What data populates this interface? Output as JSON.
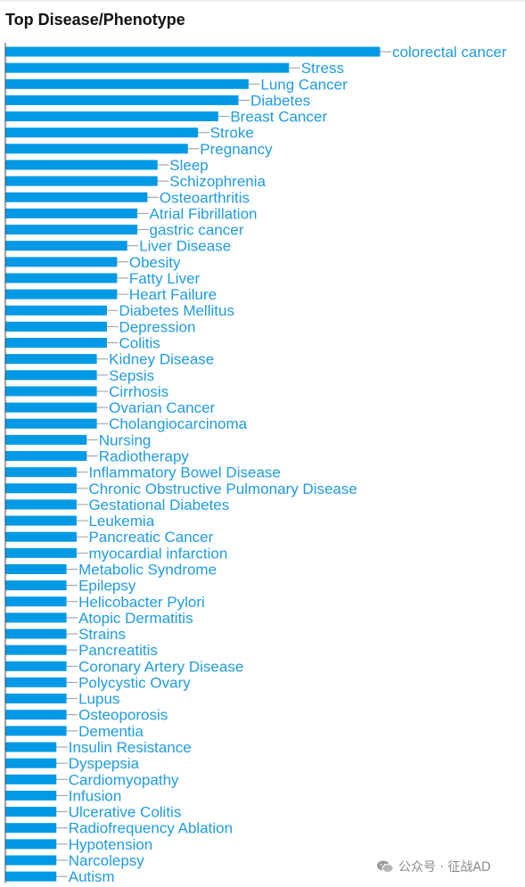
{
  "chart_data": {
    "type": "bar",
    "orientation": "horizontal",
    "title": "Top Disease/Phenotype",
    "xlabel": "",
    "ylabel": "",
    "categories": [
      "colorectal cancer",
      "Stress",
      "Lung Cancer",
      "Diabetes",
      "Breast Cancer",
      "Stroke",
      "Pregnancy",
      "Sleep",
      "Schizophrenia",
      "Osteoarthritis",
      "Atrial Fibrillation",
      "gastric cancer",
      "Liver Disease",
      "Obesity",
      "Fatty Liver",
      "Heart Failure",
      "Diabetes Mellitus",
      "Depression",
      "Colitis",
      "Kidney Disease",
      "Sepsis",
      "Cirrhosis",
      "Ovarian Cancer",
      "Cholangiocarcinoma",
      "Nursing",
      "Radiotherapy",
      "Inflammatory Bowel Disease",
      "Chronic Obstructive Pulmonary Disease",
      "Gestational Diabetes",
      "Leukemia",
      "Pancreatic Cancer",
      "myocardial infarction",
      "Metabolic Syndrome",
      "Epilepsy",
      "Helicobacter Pylori",
      "Atopic Dermatitis",
      "Strains",
      "Pancreatitis",
      "Coronary Artery Disease",
      "Polycystic Ovary",
      "Lupus",
      "Osteoporosis",
      "Dementia",
      "Insulin Resistance",
      "Dyspepsia",
      "Cardiomyopathy",
      "Infusion",
      "Ulcerative Colitis",
      "Radiofrequency Ablation",
      "Hypotension",
      "Narcolepsy",
      "Autism"
    ],
    "values": [
      37,
      28,
      24,
      23,
      21,
      19,
      18,
      15,
      15,
      14,
      13,
      13,
      12,
      11,
      11,
      11,
      10,
      10,
      10,
      9,
      9,
      9,
      9,
      9,
      8,
      8,
      7,
      7,
      7,
      7,
      7,
      7,
      6,
      6,
      6,
      6,
      6,
      6,
      6,
      6,
      6,
      6,
      6,
      5,
      5,
      5,
      5,
      5,
      5,
      5,
      5,
      5
    ],
    "grid": false,
    "legend": "none",
    "colors": {
      "bar": "#0099e6",
      "label": "#1f9be0",
      "leader": "#9a9a9a",
      "axis": "#444444"
    }
  },
  "watermark": {
    "icon": "wechat-icon",
    "text": "公众号 · 征战AD"
  }
}
